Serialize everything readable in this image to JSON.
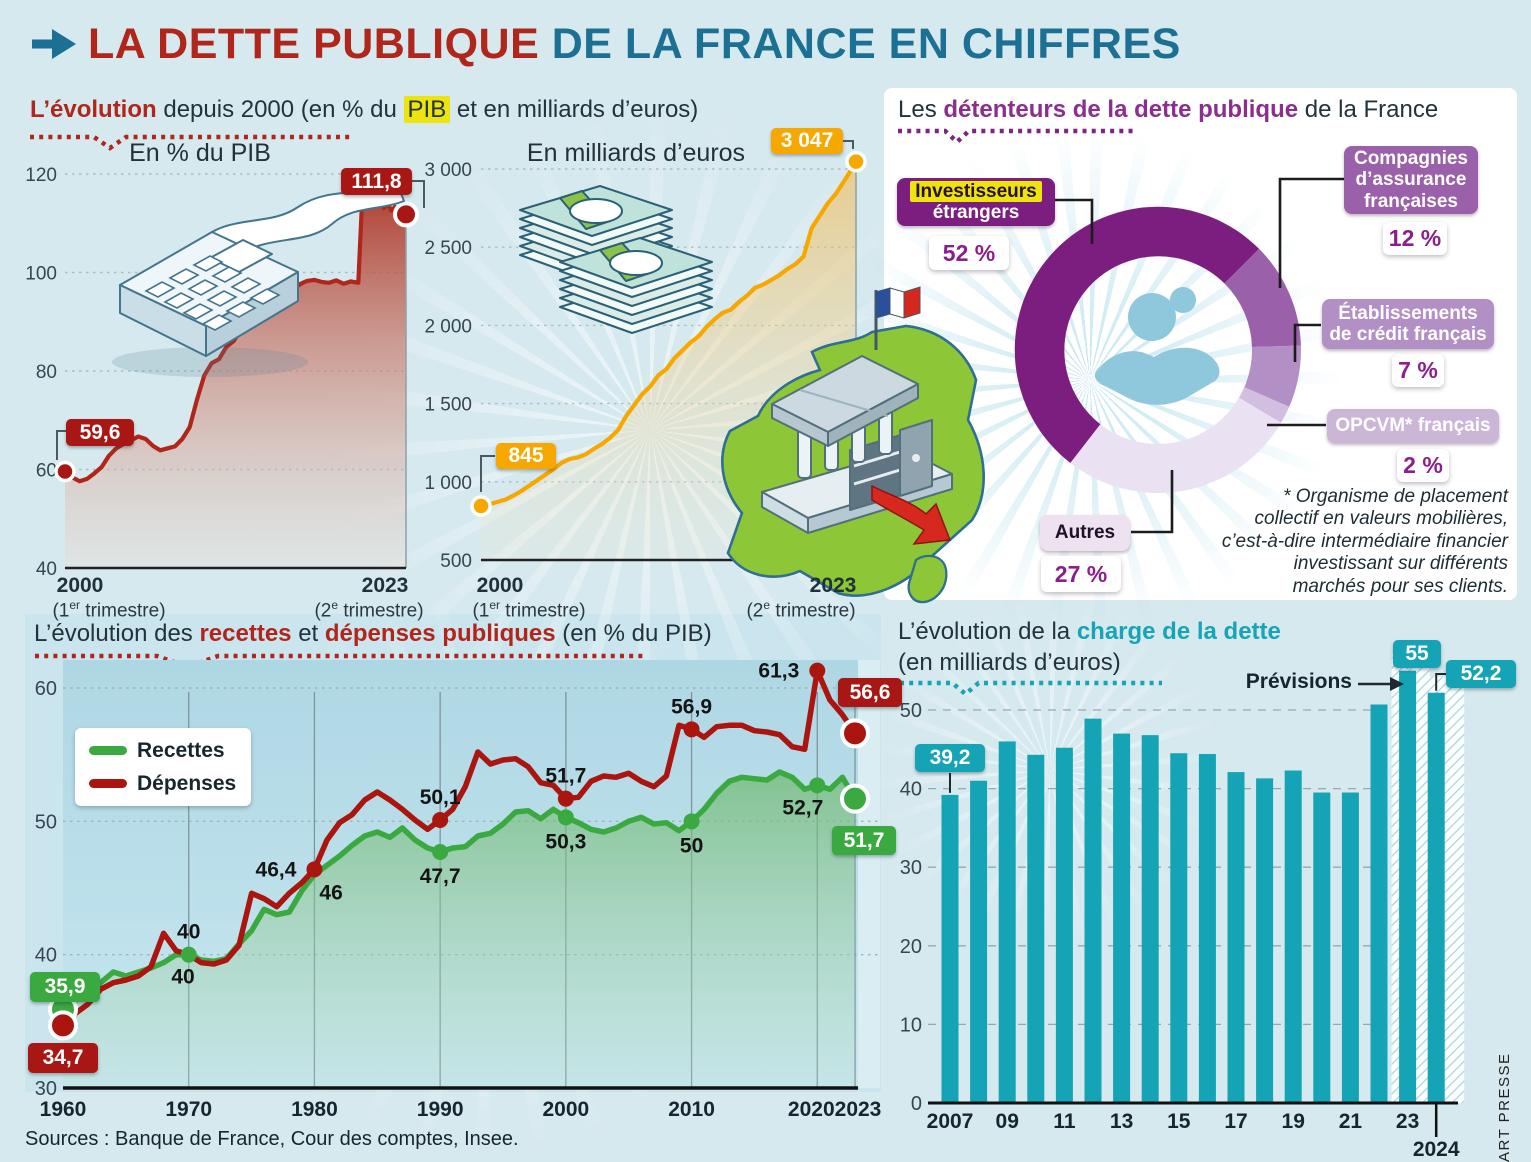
{
  "header": {
    "arrow": "→",
    "title_red": "LA DETTE PUBLIQUE",
    "title_blue": " DE LA FRANCE EN CHIFFRES"
  },
  "evolution": {
    "title": {
      "accent": "L’évolution",
      "rest1": " depuis 2000 (en % du ",
      "highlight": "PIB",
      "rest2": " et en milliards d’euros)"
    }
  },
  "axes": {
    "pib": {
      "title": "En % du PIB",
      "start_year": "2000",
      "end_year": "2023",
      "start_sub": [
        "(1",
        "er",
        " trimestre)"
      ],
      "end_sub": [
        "(2",
        "e",
        " trimestre)"
      ]
    },
    "euros": {
      "title": "En milliards d’euros",
      "start_year": "2000",
      "end_year": "2023",
      "start_sub": [
        "(1",
        "er",
        " trimestre)"
      ],
      "end_sub": [
        "(2",
        "e",
        " trimestre)"
      ]
    }
  },
  "holders": {
    "title": {
      "pre": "Les ",
      "accent": "détenteurs de la dette publique",
      "post": " de la France"
    },
    "callouts": {
      "investisseurs": {
        "highlight": "Investisseurs",
        "rest": "étrangers",
        "pct": "52 %"
      },
      "compagnies": {
        "label": "Compagnies\nd’assurance\nfrançaises",
        "pct": "12 %"
      },
      "etablissements": {
        "label": "Établissements\nde crédit français",
        "pct": "7 %"
      },
      "opcvm": {
        "label": "OPCVM* français",
        "pct": "2 %"
      },
      "autres": {
        "label": "Autres",
        "pct": "27 %"
      }
    },
    "footnote": "* Organisme de placement\ncollectif en valeurs mobilières,\nc’est-à-dire intermédiaire financier\ninvestissant sur différents\nmarchés pour ses clients."
  },
  "budget": {
    "title": {
      "pre": "L’évolution des ",
      "accent1": "recettes",
      "mid": " et ",
      "accent2": "dépenses publiques",
      "post": " (en % du PIB)"
    },
    "legend": {
      "recettes": "Recettes",
      "depenses": "Dépenses"
    },
    "badges": {
      "start_recettes": "35,9",
      "start_depenses": "34,7",
      "end_depenses": "56,6",
      "end_recettes": "51,7"
    }
  },
  "charge": {
    "title": {
      "pre": "L’évolution de la ",
      "accent": "charge de la dette",
      "line2": "(en milliards d’euros)"
    },
    "previsions": "Prévisions",
    "badges": {
      "first": "39,2",
      "b2023": "55",
      "b2024": "52,2"
    }
  },
  "footer": {
    "sources": "Sources : Banque de France, Cour des comptes, Insee.",
    "credit": "ART PRESSE"
  },
  "colors": {
    "accent_red": "#b1261a",
    "accent_blue": "#1c7093",
    "accent_purple": "#8b2e8f",
    "accent_teal": "#16a4b6",
    "highlight_yellow": "#ece40c",
    "orange": "#f6a800",
    "green": "#3aa93f",
    "dark_red": "#ab150f",
    "bar_teal": "#14a4b6",
    "background": "#d6e9ef"
  },
  "chart_data": [
    {
      "id": "dette_pib",
      "type": "line",
      "title": "En % du PIB",
      "ylabel": "% du PIB",
      "ylim": [
        40,
        120
      ],
      "yticks": [
        40,
        60,
        80,
        100,
        120
      ],
      "x_range": [
        "2000 (1er trimestre)",
        "2023 (2e trimestre)"
      ],
      "line_color": "#b1261a",
      "start_label": "59,6",
      "end_label": "111,8",
      "points": [
        [
          2000,
          59.6
        ],
        [
          2000.5,
          58.4
        ],
        [
          2001,
          57.6
        ],
        [
          2001.5,
          58.1
        ],
        [
          2002,
          59.2
        ],
        [
          2002.5,
          60.5
        ],
        [
          2003,
          62.8
        ],
        [
          2003.5,
          64.3
        ],
        [
          2004,
          65.2
        ],
        [
          2004.5,
          65.9
        ],
        [
          2005,
          66.7
        ],
        [
          2005.5,
          66.2
        ],
        [
          2006,
          64.8
        ],
        [
          2006.5,
          63.9
        ],
        [
          2007,
          64.3
        ],
        [
          2007.5,
          64.7
        ],
        [
          2008,
          66.2
        ],
        [
          2008.5,
          68.6
        ],
        [
          2009,
          74.2
        ],
        [
          2009.5,
          79.1
        ],
        [
          2010,
          81.6
        ],
        [
          2010.5,
          82.4
        ],
        [
          2011,
          84.9
        ],
        [
          2011.5,
          86.1
        ],
        [
          2012,
          88.6
        ],
        [
          2012.5,
          90.1
        ],
        [
          2013,
          91.9
        ],
        [
          2013.5,
          93.1
        ],
        [
          2014,
          94.6
        ],
        [
          2014.5,
          95.4
        ],
        [
          2015,
          95.9
        ],
        [
          2015.5,
          96.3
        ],
        [
          2016,
          97.6
        ],
        [
          2016.5,
          98.3
        ],
        [
          2017,
          98.5
        ],
        [
          2017.5,
          98.1
        ],
        [
          2018,
          97.9
        ],
        [
          2018.5,
          98.4
        ],
        [
          2019,
          97.7
        ],
        [
          2019.5,
          98.2
        ],
        [
          2020,
          97.9
        ],
        [
          2020.25,
          114.1
        ],
        [
          2020.5,
          116.1
        ],
        [
          2020.75,
          114.6
        ],
        [
          2021,
          115.6
        ],
        [
          2021.25,
          113.9
        ],
        [
          2021.5,
          114.9
        ],
        [
          2021.75,
          113.1
        ],
        [
          2022,
          113.9
        ],
        [
          2022.25,
          112.6
        ],
        [
          2022.5,
          113.3
        ],
        [
          2022.75,
          112.1
        ],
        [
          2023,
          112.7
        ],
        [
          2023.25,
          111.8
        ]
      ]
    },
    {
      "id": "dette_euros",
      "type": "line",
      "title": "En milliards d’euros",
      "ylabel": "milliards d’euros",
      "ylim": [
        500,
        3047
      ],
      "yticks": [
        500,
        1000,
        1500,
        2000,
        2500,
        3000
      ],
      "ytick_labels": [
        "500",
        "1 000",
        "1 500",
        "2 000",
        "2 500",
        "3 000"
      ],
      "x_range": [
        "2000 (1er trimestre)",
        "2023 (2e trimestre)"
      ],
      "line_color": "#f6a800",
      "start_label": "845",
      "end_label": "3 047",
      "points": [
        [
          2000,
          845
        ],
        [
          2000.5,
          856
        ],
        [
          2001,
          871
        ],
        [
          2001.5,
          886
        ],
        [
          2002,
          911
        ],
        [
          2002.5,
          941
        ],
        [
          2003,
          976
        ],
        [
          2003.5,
          1011
        ],
        [
          2004,
          1046
        ],
        [
          2004.5,
          1081
        ],
        [
          2005,
          1121
        ],
        [
          2005.5,
          1146
        ],
        [
          2006,
          1156
        ],
        [
          2006.5,
          1176
        ],
        [
          2007,
          1211
        ],
        [
          2007.5,
          1241
        ],
        [
          2008,
          1281
        ],
        [
          2008.5,
          1331
        ],
        [
          2009,
          1421
        ],
        [
          2009.5,
          1491
        ],
        [
          2010,
          1561
        ],
        [
          2010.5,
          1611
        ],
        [
          2011,
          1681
        ],
        [
          2011.5,
          1721
        ],
        [
          2012,
          1791
        ],
        [
          2012.5,
          1841
        ],
        [
          2013,
          1891
        ],
        [
          2013.5,
          1931
        ],
        [
          2014,
          1991
        ],
        [
          2014.5,
          2041
        ],
        [
          2015,
          2081
        ],
        [
          2015.5,
          2101
        ],
        [
          2016,
          2151
        ],
        [
          2016.5,
          2191
        ],
        [
          2017,
          2241
        ],
        [
          2017.5,
          2261
        ],
        [
          2018,
          2291
        ],
        [
          2018.5,
          2321
        ],
        [
          2019,
          2361
        ],
        [
          2019.5,
          2391
        ],
        [
          2020,
          2441
        ],
        [
          2020.5,
          2621
        ],
        [
          2021,
          2701
        ],
        [
          2021.5,
          2781
        ],
        [
          2022,
          2841
        ],
        [
          2022.5,
          2921
        ],
        [
          2023,
          3001
        ],
        [
          2023.25,
          3047
        ]
      ]
    },
    {
      "id": "recettes_depenses",
      "type": "line",
      "title": "L’évolution des recettes et dépenses publiques (en % du PIB)",
      "ylim": [
        30,
        62
      ],
      "yticks": [
        30,
        40,
        50,
        60
      ],
      "x_start": 1960,
      "x_step": 1,
      "xticks": [
        1960,
        1970,
        1980,
        1990,
        2000,
        2010,
        2020,
        2023
      ],
      "series": [
        {
          "name": "Recettes",
          "color": "#3aa93f",
          "values": [
            35.9,
            36.6,
            36.9,
            37.9,
            38.7,
            38.4,
            38.7,
            39.0,
            39.4,
            40.0,
            40.0,
            39.6,
            39.5,
            39.7,
            40.8,
            41.8,
            43.4,
            43.0,
            43.2,
            44.8,
            46.0,
            46.7,
            47.4,
            48.2,
            48.9,
            49.2,
            48.8,
            49.5,
            48.6,
            48.0,
            47.7,
            48.0,
            48.1,
            48.9,
            49.1,
            49.8,
            50.7,
            50.8,
            50.2,
            50.9,
            50.3,
            49.9,
            49.4,
            49.2,
            49.5,
            50.0,
            50.3,
            49.8,
            49.9,
            49.3,
            50.0,
            50.9,
            52.1,
            53.0,
            53.3,
            53.2,
            53.1,
            53.7,
            53.3,
            52.4,
            52.7,
            52.4,
            53.3,
            51.7
          ]
        },
        {
          "name": "Dépenses",
          "color": "#ab150f",
          "values": [
            34.7,
            35.6,
            36.3,
            37.4,
            37.9,
            38.1,
            38.4,
            39.1,
            41.6,
            40.3,
            40.0,
            39.4,
            39.3,
            39.6,
            40.7,
            44.6,
            44.2,
            43.6,
            44.6,
            45.4,
            46.4,
            48.6,
            49.9,
            50.5,
            51.6,
            52.2,
            51.6,
            50.9,
            50.1,
            49.4,
            50.1,
            50.9,
            52.6,
            55.2,
            54.3,
            54.6,
            54.7,
            54.1,
            52.9,
            52.7,
            51.7,
            51.8,
            53.0,
            53.4,
            53.3,
            53.6,
            53.0,
            52.6,
            53.4,
            57.2,
            56.9,
            56.3,
            57.1,
            57.2,
            57.2,
            56.8,
            56.7,
            56.5,
            55.6,
            55.4,
            61.3,
            59.1,
            58.0,
            56.6
          ]
        }
      ],
      "start_labels": {
        "recettes": "35,9",
        "depenses": "34,7"
      },
      "end_labels": {
        "recettes": "51,7",
        "depenses": "56,6"
      },
      "point_labels": [
        {
          "year": 1970,
          "series": 0,
          "value": 40,
          "text": "40",
          "pos": "above",
          "dot": true
        },
        {
          "year": 1970,
          "series": 1,
          "value": 40,
          "text": "40",
          "pos": "belowleft",
          "dot": false
        },
        {
          "year": 1980,
          "series": 1,
          "value": 46.4,
          "text": "46,4",
          "pos": "left",
          "dot": true
        },
        {
          "year": 1980,
          "series": 0,
          "value": 46,
          "text": "46",
          "pos": "belowright",
          "dot": false
        },
        {
          "year": 1990,
          "series": 1,
          "value": 50.1,
          "text": "50,1",
          "pos": "above",
          "dot": true
        },
        {
          "year": 1990,
          "series": 0,
          "value": 47.7,
          "text": "47,7",
          "pos": "below",
          "dot": true
        },
        {
          "year": 2000,
          "series": 1,
          "value": 51.7,
          "text": "51,7",
          "pos": "above",
          "dot": true
        },
        {
          "year": 2000,
          "series": 0,
          "value": 50.3,
          "text": "50,3",
          "pos": "below",
          "dot": true
        },
        {
          "year": 2010,
          "series": 1,
          "value": 56.9,
          "text": "56,9",
          "pos": "above",
          "dot": true
        },
        {
          "year": 2010,
          "series": 0,
          "value": 50,
          "text": "50",
          "pos": "below",
          "dot": true
        },
        {
          "year": 2020,
          "series": 1,
          "value": 61.3,
          "text": "61,3",
          "pos": "left",
          "dot": true
        },
        {
          "year": 2020,
          "series": 0,
          "value": 52.7,
          "text": "52,7",
          "pos": "belowleft",
          "dot": true
        }
      ]
    },
    {
      "id": "charge_dette",
      "type": "bar",
      "title": "L’évolution de la charge de la dette (en milliards d’euros)",
      "ylim": [
        0,
        55
      ],
      "yticks": [
        0,
        10,
        20,
        30,
        40,
        50
      ],
      "bar_color": "#14a4b6",
      "years": [
        2007,
        2008,
        2009,
        2010,
        2011,
        2012,
        2013,
        2014,
        2015,
        2016,
        2017,
        2018,
        2019,
        2020,
        2021,
        2022,
        2023,
        2024
      ],
      "values": [
        39.2,
        41.0,
        46.0,
        44.3,
        45.2,
        48.9,
        47.0,
        46.8,
        44.5,
        44.4,
        42.1,
        41.3,
        42.3,
        39.5,
        39.5,
        50.7,
        55.0,
        52.2
      ],
      "xticks": [
        {
          "i": 0,
          "label": "2007"
        },
        {
          "i": 2,
          "label": "09"
        },
        {
          "i": 4,
          "label": "11"
        },
        {
          "i": 6,
          "label": "13"
        },
        {
          "i": 8,
          "label": "15"
        },
        {
          "i": 10,
          "label": "17"
        },
        {
          "i": 12,
          "label": "19"
        },
        {
          "i": 14,
          "label": "21"
        },
        {
          "i": 16,
          "label": "23"
        }
      ],
      "x_end_label": "2024",
      "prevision_indices": [
        16,
        17
      ],
      "value_badges": [
        {
          "i": 0,
          "text": "39,2"
        },
        {
          "i": 16,
          "text": "55"
        },
        {
          "i": 17,
          "text": "52,2"
        }
      ],
      "annotation": "Prévisions"
    },
    {
      "id": "detenteurs",
      "type": "pie",
      "title": "Les détenteurs de la dette publique de la France",
      "start_angle_deg": 217.8,
      "slices": [
        {
          "label": "Investisseurs étrangers",
          "pct": 52,
          "color": "#7c1e80"
        },
        {
          "label": "Compagnies d’assurance françaises",
          "pct": 12,
          "color": "#9a60a9"
        },
        {
          "label": "Établissements de crédit français",
          "pct": 7,
          "color": "#b28fc4"
        },
        {
          "label": "OPCVM* français",
          "pct": 2,
          "color": "#d2bfdf"
        },
        {
          "label": "Autres",
          "pct": 27,
          "color": "#eae2f2"
        }
      ]
    }
  ]
}
